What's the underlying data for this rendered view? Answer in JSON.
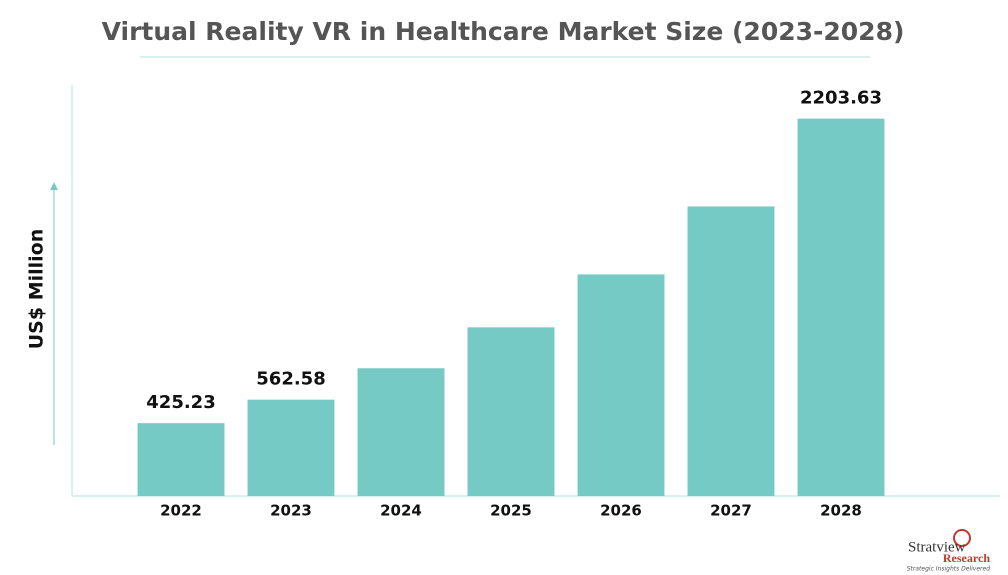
{
  "chart_data": {
    "type": "bar",
    "title": "Virtual Reality VR in Healthcare Market Size (2023-2028)",
    "y_label": "US$ Million",
    "categories": [
      "2022",
      "2023",
      "2024",
      "2025",
      "2026",
      "2027",
      "2028"
    ],
    "values": [
      425.23,
      562.58,
      746,
      985,
      1294,
      1691,
      2203.63
    ],
    "value_labels": [
      "425.23",
      "562.58",
      null,
      null,
      null,
      null,
      "2203.63"
    ],
    "color": "#76cac5",
    "ylim": [
      0,
      2400
    ]
  },
  "logo": {
    "name": "Stratview",
    "sub": "Research",
    "tagline": "Strategic Insights Delivered"
  }
}
